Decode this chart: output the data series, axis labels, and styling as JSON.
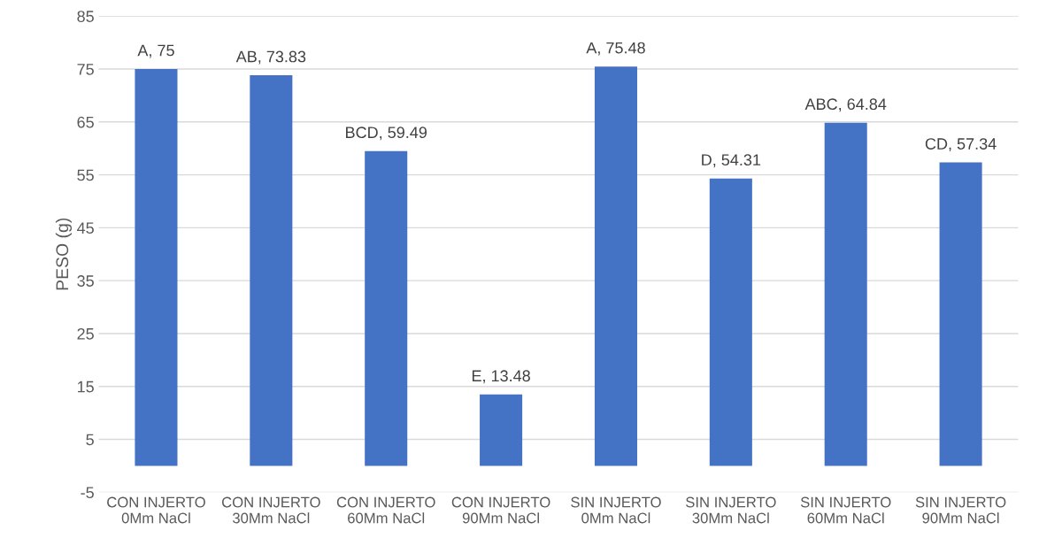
{
  "chart_data": {
    "type": "bar",
    "ylabel": "PESO (g)",
    "categories": [
      "CON INJERTO\n0Mm NaCl",
      "CON INJERTO\n30Mm NaCl",
      "CON INJERTO\n60Mm NaCl",
      "CON INJERTO\n90Mm NaCl",
      "SIN INJERTO\n0Mm NaCl",
      "SIN INJERTO\n30Mm NaCl",
      "SIN INJERTO\n60Mm NaCl",
      "SIN INJERTO\n90Mm NaCl"
    ],
    "values": [
      75,
      73.83,
      59.49,
      13.48,
      75.48,
      54.31,
      64.84,
      57.34
    ],
    "value_labels": [
      "A, 75",
      "AB, 73.83",
      "BCD, 59.49",
      "E, 13.48",
      "A, 75.48",
      "D, 54.31",
      "ABC, 64.84",
      "CD, 57.34"
    ],
    "color": "#4472c4",
    "ylim": [
      -5,
      85
    ],
    "yticks": [
      -5,
      5,
      15,
      25,
      35,
      45,
      55,
      65,
      75,
      85
    ],
    "grid": "y"
  }
}
